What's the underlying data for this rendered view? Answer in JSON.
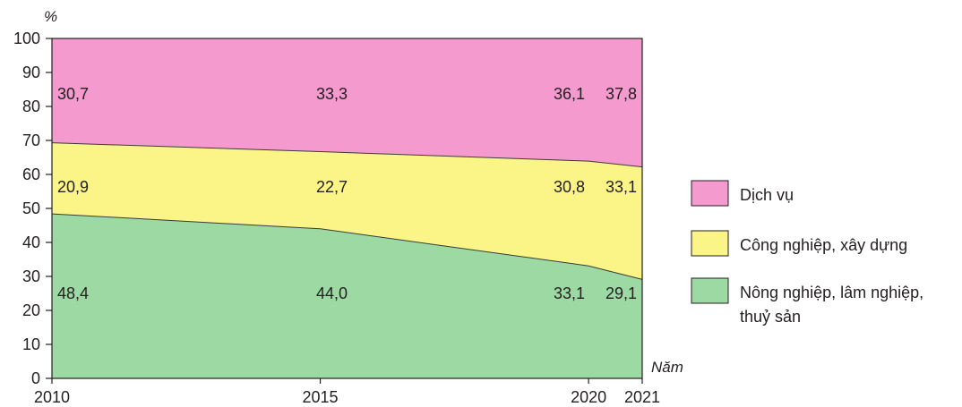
{
  "chart_data": {
    "type": "area",
    "stacked": true,
    "y_unit": "%",
    "x_unit": "Năm",
    "x": [
      2010,
      2015,
      2020,
      2021
    ],
    "ylim": [
      0,
      100
    ],
    "yticks": [
      0,
      10,
      20,
      30,
      40,
      50,
      60,
      70,
      80,
      90,
      100
    ],
    "grid": false,
    "legend_position": "right",
    "series": [
      {
        "name": "Nông nghiệp, lâm nghiệp, thuỷ sản",
        "legend_lines": [
          "Nông nghiệp, lâm nghiệp,",
          "thuỷ sản"
        ],
        "color": "#9dd9a3",
        "values": [
          48.4,
          44.0,
          33.1,
          29.1
        ],
        "labels": [
          "48,4",
          "44,0",
          "33,1",
          "29,1"
        ]
      },
      {
        "name": "Công nghiệp, xây dựng",
        "legend_lines": [
          "Công nghiệp, xây dựng"
        ],
        "color": "#fbf588",
        "values": [
          20.9,
          22.7,
          30.8,
          33.1
        ],
        "labels": [
          "20,9",
          "22,7",
          "30,8",
          "33,1"
        ]
      },
      {
        "name": "Dịch vụ",
        "legend_lines": [
          "Dịch vụ"
        ],
        "color": "#f49ace",
        "values": [
          30.7,
          33.3,
          36.1,
          37.8
        ],
        "labels": [
          "30,7",
          "33,3",
          "36,1",
          "37,8"
        ]
      }
    ]
  }
}
